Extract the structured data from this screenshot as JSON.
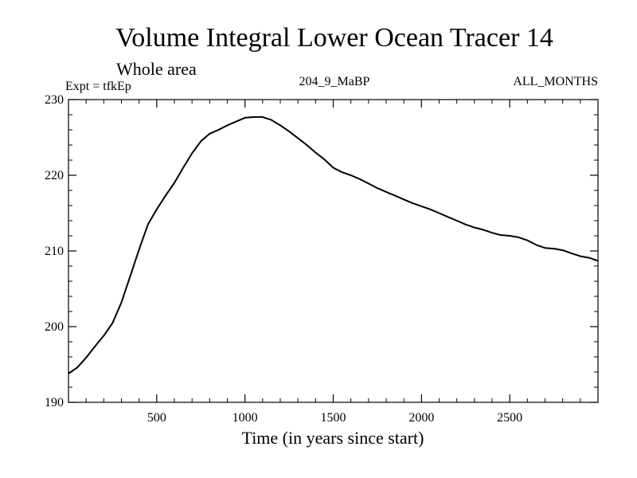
{
  "chart_data": {
    "type": "line",
    "title": "Volume Integral Lower Ocean Tracer 14",
    "subtitle": "Whole area",
    "expt_label": "Expt = tfkEp",
    "center_label": "204_9_MaBP",
    "right_label": "ALL_MONTHS",
    "xlabel": "Time (in years since start)",
    "ylabel": "",
    "xlim": [
      0,
      3000
    ],
    "ylim": [
      190,
      230
    ],
    "x_ticks": [
      500,
      1000,
      1500,
      2000,
      2500
    ],
    "y_ticks": [
      190,
      200,
      210,
      220,
      230
    ],
    "grid": false,
    "colors": {
      "line": "#000000",
      "axis": "#000000"
    },
    "series": [
      {
        "x": [
          0,
          50,
          100,
          150,
          200,
          250,
          300,
          350,
          400,
          450,
          500,
          550,
          600,
          650,
          700,
          750,
          800,
          850,
          900,
          950,
          1000,
          1050,
          1100,
          1150,
          1200,
          1250,
          1300,
          1350,
          1400,
          1450,
          1500,
          1550,
          1600,
          1650,
          1700,
          1750,
          1800,
          1850,
          1900,
          1950,
          2000,
          2050,
          2100,
          2150,
          2200,
          2250,
          2300,
          2350,
          2400,
          2450,
          2500,
          2550,
          2600,
          2650,
          2700,
          2750,
          2800,
          2850,
          2900,
          2950,
          3000
        ],
        "y": [
          193.8,
          194.6,
          195.9,
          197.4,
          198.8,
          200.5,
          203.2,
          206.7,
          210.2,
          213.5,
          215.5,
          217.3,
          219.0,
          221.0,
          222.9,
          224.5,
          225.5,
          226.0,
          226.6,
          227.1,
          227.6,
          227.7,
          227.7,
          227.3,
          226.6,
          225.8,
          224.9,
          224.0,
          223.0,
          222.1,
          221.0,
          220.4,
          220.0,
          219.5,
          218.9,
          218.3,
          217.8,
          217.3,
          216.8,
          216.3,
          215.9,
          215.5,
          215.0,
          214.5,
          214.0,
          213.5,
          213.1,
          212.8,
          212.4,
          212.1,
          212.0,
          211.8,
          211.4,
          210.8,
          210.4,
          210.3,
          210.1,
          209.7,
          209.3,
          209.1,
          208.7
        ]
      }
    ]
  }
}
